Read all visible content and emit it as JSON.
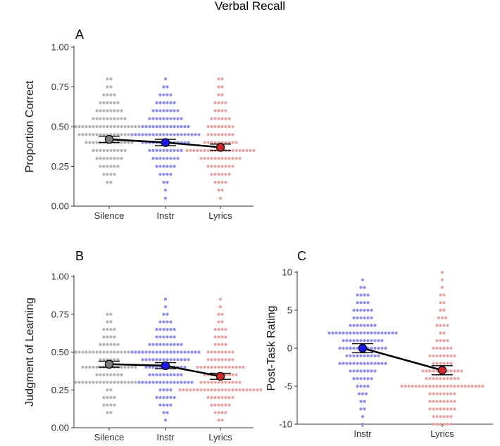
{
  "figure_title": "Verbal Recall",
  "chart_data": [
    {
      "panel": "A",
      "type": "scatter",
      "subtype": "dot-plot with group means, error bars and connecting line",
      "ylabel": "Proportion Correct",
      "xlabel": "",
      "categories": [
        "Silence",
        "Instr",
        "Lyrics"
      ],
      "ylim": [
        0,
        1
      ],
      "yticks": [
        "0.00",
        "0.25",
        "0.50",
        "0.75",
        "1.00"
      ],
      "grid": false,
      "colors": {
        "Silence": "#b3b3b3",
        "Instr": "#8c8cf2",
        "Lyrics": "#e8a3a3"
      },
      "mean_colors": {
        "Silence": "#7f7f7f",
        "Instr": "#1a1aee",
        "Lyrics": "#cc2a2a"
      },
      "means": [
        0.42,
        0.4,
        0.37
      ],
      "error_bars": [
        0.02,
        0.02,
        0.02
      ],
      "distributions": [
        {
          "group": "Silence",
          "levels": [
            0.15,
            0.2,
            0.25,
            0.3,
            0.35,
            0.4,
            0.45,
            0.5,
            0.55,
            0.6,
            0.65,
            0.7,
            0.75,
            0.8
          ],
          "counts": [
            2,
            4,
            6,
            8,
            10,
            14,
            18,
            20,
            10,
            8,
            6,
            4,
            2,
            2
          ]
        },
        {
          "group": "Instr",
          "levels": [
            0.05,
            0.1,
            0.15,
            0.2,
            0.25,
            0.3,
            0.35,
            0.4,
            0.45,
            0.5,
            0.55,
            0.6,
            0.65,
            0.7,
            0.75,
            0.8
          ],
          "counts": [
            1,
            1,
            2,
            4,
            6,
            8,
            10,
            14,
            20,
            14,
            10,
            8,
            6,
            4,
            2,
            1
          ]
        },
        {
          "group": "Lyrics",
          "levels": [
            0.05,
            0.1,
            0.15,
            0.2,
            0.25,
            0.3,
            0.35,
            0.4,
            0.45,
            0.5,
            0.55,
            0.6,
            0.65,
            0.7,
            0.75,
            0.8
          ],
          "counts": [
            1,
            2,
            4,
            6,
            8,
            12,
            20,
            10,
            8,
            8,
            6,
            4,
            4,
            2,
            2,
            2
          ]
        }
      ]
    },
    {
      "panel": "B",
      "type": "scatter",
      "subtype": "dot-plot with group means, error bars and connecting line",
      "ylabel": "Judgment of Learning",
      "xlabel": "",
      "categories": [
        "Silence",
        "Instr",
        "Lyrics"
      ],
      "ylim": [
        0,
        1
      ],
      "yticks": [
        "0.00",
        "0.25",
        "0.50",
        "0.75",
        "1.00"
      ],
      "grid": false,
      "colors": {
        "Silence": "#b3b3b3",
        "Instr": "#8c8cf2",
        "Lyrics": "#e8a3a3"
      },
      "mean_colors": {
        "Silence": "#7f7f7f",
        "Instr": "#1a1aee",
        "Lyrics": "#cc2a2a"
      },
      "means": [
        0.42,
        0.41,
        0.34
      ],
      "error_bars": [
        0.02,
        0.02,
        0.02
      ],
      "distributions": [
        {
          "group": "Silence",
          "levels": [
            0.1,
            0.15,
            0.2,
            0.25,
            0.3,
            0.35,
            0.4,
            0.45,
            0.5,
            0.55,
            0.6,
            0.65,
            0.7,
            0.75
          ],
          "counts": [
            2,
            4,
            4,
            2,
            20,
            8,
            16,
            6,
            20,
            6,
            4,
            4,
            2,
            2
          ]
        },
        {
          "group": "Instr",
          "levels": [
            0.05,
            0.1,
            0.15,
            0.2,
            0.25,
            0.3,
            0.35,
            0.4,
            0.45,
            0.5,
            0.55,
            0.6,
            0.65,
            0.7,
            0.75,
            0.8,
            0.85
          ],
          "counts": [
            1,
            2,
            4,
            6,
            4,
            16,
            10,
            12,
            14,
            20,
            10,
            6,
            6,
            4,
            2,
            1,
            1
          ]
        },
        {
          "group": "Lyrics",
          "levels": [
            0.05,
            0.1,
            0.15,
            0.2,
            0.25,
            0.3,
            0.35,
            0.4,
            0.45,
            0.5,
            0.55,
            0.6,
            0.65,
            0.7,
            0.75,
            0.8,
            0.85
          ],
          "counts": [
            2,
            4,
            6,
            8,
            24,
            12,
            10,
            14,
            8,
            8,
            4,
            4,
            4,
            2,
            2,
            1,
            1
          ]
        }
      ]
    },
    {
      "panel": "C",
      "type": "scatter",
      "subtype": "dot-plot with group means, error bars and connecting line",
      "ylabel": "Post-Task Rating",
      "xlabel": "",
      "categories": [
        "Instr",
        "Lyrics"
      ],
      "ylim": [
        -10,
        10
      ],
      "yticks": [
        "-10",
        "-5",
        "0",
        "5",
        "10"
      ],
      "grid": false,
      "colors": {
        "Instr": "#8c8cf2",
        "Lyrics": "#e8a3a3"
      },
      "mean_colors": {
        "Instr": "#1a1aee",
        "Lyrics": "#cc2a2a"
      },
      "means": [
        0.0,
        -2.9
      ],
      "error_bars": [
        0.6,
        0.6
      ],
      "distributions": [
        {
          "group": "Instr",
          "levels": [
            -10,
            -9,
            -8,
            -7,
            -6,
            -5,
            -4,
            -3,
            -2,
            -1,
            0,
            1,
            2,
            3,
            4,
            5,
            6,
            7,
            8,
            9
          ],
          "counts": [
            1,
            1,
            2,
            2,
            3,
            4,
            6,
            8,
            14,
            10,
            14,
            12,
            20,
            8,
            6,
            6,
            4,
            4,
            2,
            1
          ]
        },
        {
          "group": "Lyrics",
          "levels": [
            -10,
            -9,
            -8,
            -7,
            -6,
            -5,
            -4,
            -3,
            -2,
            -1,
            0,
            1,
            2,
            3,
            4,
            5,
            6,
            7,
            8,
            9,
            10
          ],
          "counts": [
            6,
            6,
            8,
            8,
            8,
            24,
            10,
            12,
            6,
            8,
            6,
            4,
            2,
            4,
            3,
            2,
            2,
            2,
            1,
            1,
            1
          ]
        }
      ]
    }
  ]
}
